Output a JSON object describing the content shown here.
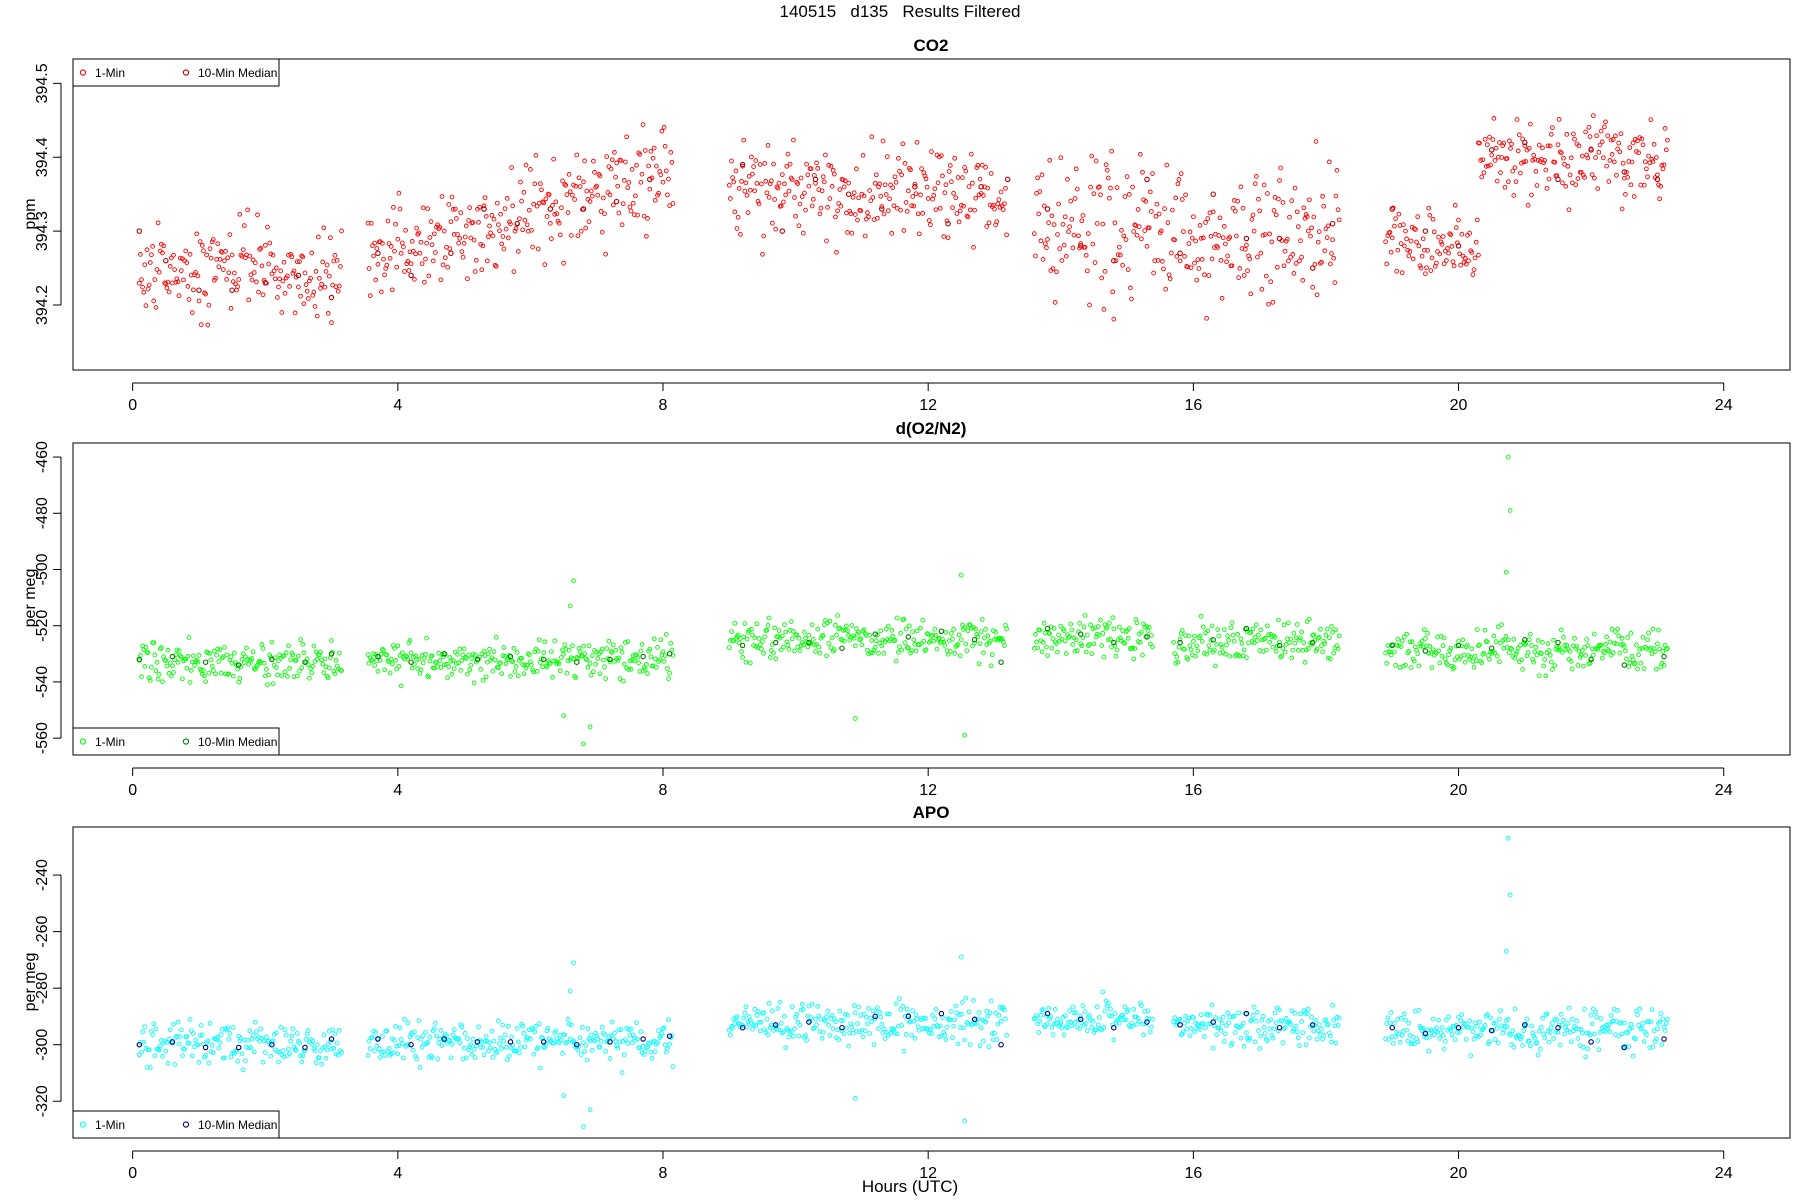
{
  "page_title": "140515   d135   Results Filtered",
  "xlabel": "Hours (UTC)",
  "x_ticks": [
    0,
    4,
    8,
    12,
    16,
    20,
    24
  ],
  "chart_data": [
    {
      "type": "scatter",
      "title": "CO2",
      "ylabel": "ppm",
      "xlim": [
        -0.9,
        25.0
      ],
      "ylim": [
        394.112,
        394.533
      ],
      "y_ticks": [
        394.2,
        394.3,
        394.4,
        394.5
      ],
      "y_tick_labels": [
        "394.2",
        "394.3",
        "394.4",
        "394.5"
      ],
      "legend": {
        "position": "top-left",
        "entries": [
          "1-Min",
          "10-Min Median"
        ]
      },
      "series": [
        {
          "name": "1-Min",
          "color": "#ff0000",
          "segments": [
            {
              "x": [
                0.1,
                3.15
              ],
              "center": 394.245,
              "noise": 0.04
            },
            {
              "x": [
                3.55,
                8.15
              ],
              "center": 394.26,
              "end_center": 394.38,
              "noise": 0.045
            },
            {
              "x": [
                9.0,
                13.2
              ],
              "center": 394.35,
              "noise": 0.04
            },
            {
              "x": [
                13.6,
                18.2
              ],
              "center": 394.3,
              "noise": 0.065
            },
            {
              "x": [
                18.9,
                20.3
              ],
              "center": 394.28,
              "noise": 0.03
            },
            {
              "x": [
                20.3,
                23.15
              ],
              "center": 394.4,
              "noise": 0.04
            }
          ]
        },
        {
          "name": "10-Min Median",
          "color": "#b00000",
          "points": [
            [
              0.1,
              394.3
            ],
            [
              0.5,
              394.26
            ],
            [
              1.0,
              394.22
            ],
            [
              1.5,
              394.22
            ],
            [
              2.0,
              394.23
            ],
            [
              2.5,
              394.24
            ],
            [
              3.0,
              394.21
            ],
            [
              3.7,
              394.27
            ],
            [
              4.2,
              394.24
            ],
            [
              4.8,
              394.27
            ],
            [
              5.3,
              394.33
            ],
            [
              5.8,
              394.31
            ],
            [
              6.3,
              394.33
            ],
            [
              6.8,
              394.33
            ],
            [
              7.3,
              394.34
            ],
            [
              7.8,
              394.37
            ],
            [
              9.2,
              394.39
            ],
            [
              9.8,
              394.3
            ],
            [
              10.3,
              394.37
            ],
            [
              10.8,
              394.35
            ],
            [
              11.3,
              394.33
            ],
            [
              11.8,
              394.36
            ],
            [
              12.3,
              394.31
            ],
            [
              12.8,
              394.36
            ],
            [
              13.2,
              394.37
            ],
            [
              13.8,
              394.33
            ],
            [
              14.3,
              394.28
            ],
            [
              14.8,
              394.26
            ],
            [
              15.3,
              394.37
            ],
            [
              15.8,
              394.27
            ],
            [
              16.3,
              394.35
            ],
            [
              16.8,
              394.29
            ],
            [
              17.3,
              394.29
            ],
            [
              17.8,
              394.25
            ],
            [
              18.1,
              394.31
            ],
            [
              19.0,
              394.33
            ],
            [
              19.5,
              394.3
            ],
            [
              20.0,
              394.28
            ],
            [
              20.5,
              394.41
            ],
            [
              21.0,
              394.42
            ],
            [
              21.5,
              394.37
            ],
            [
              22.0,
              394.41
            ],
            [
              22.5,
              394.38
            ],
            [
              23.0,
              394.37
            ]
          ]
        }
      ]
    },
    {
      "type": "scatter",
      "title": "d(O2/N2)",
      "ylabel": "per meg",
      "xlim": [
        -0.9,
        25.0
      ],
      "ylim": [
        -566.0,
        -455.0
      ],
      "y_ticks": [
        -560,
        -540,
        -520,
        -500,
        -480,
        -460
      ],
      "y_tick_labels": [
        "-560",
        "-540",
        "-520",
        "-500",
        "-480",
        "-460"
      ],
      "legend": {
        "position": "bottom-left",
        "entries": [
          "1-Min",
          "10-Min Median"
        ]
      },
      "series": [
        {
          "name": "1-Min",
          "color": "#00ff00",
          "segments": [
            {
              "x": [
                0.1,
                3.15
              ],
              "center": -533.0,
              "noise": 5.0
            },
            {
              "x": [
                3.55,
                8.15
              ],
              "center": -532.0,
              "noise": 5.0
            },
            {
              "x": [
                9.0,
                13.2
              ],
              "center": -525.0,
              "noise": 5.0
            },
            {
              "x": [
                13.6,
                15.4
              ],
              "center": -524.0,
              "noise": 4.5
            },
            {
              "x": [
                15.7,
                18.2
              ],
              "center": -526.0,
              "noise": 5.0
            },
            {
              "x": [
                18.9,
                23.15
              ],
              "center": -529.0,
              "noise": 5.0
            }
          ],
          "outliers": [
            [
              20.75,
              -460
            ],
            [
              20.78,
              -479
            ],
            [
              20.72,
              -501
            ],
            [
              6.65,
              -504
            ],
            [
              6.6,
              -513
            ],
            [
              6.9,
              -556
            ],
            [
              6.5,
              -552
            ],
            [
              6.8,
              -562
            ],
            [
              12.55,
              -559
            ],
            [
              12.5,
              -502
            ],
            [
              10.9,
              -553
            ]
          ]
        },
        {
          "name": "10-Min Median",
          "color": "#007a00",
          "points": [
            [
              0.1,
              -532
            ],
            [
              0.6,
              -531
            ],
            [
              1.1,
              -533
            ],
            [
              1.6,
              -534
            ],
            [
              2.1,
              -532
            ],
            [
              2.6,
              -533
            ],
            [
              3.0,
              -530
            ],
            [
              3.7,
              -531
            ],
            [
              4.2,
              -533
            ],
            [
              4.7,
              -530
            ],
            [
              5.2,
              -532
            ],
            [
              5.7,
              -531
            ],
            [
              6.2,
              -532
            ],
            [
              6.7,
              -533
            ],
            [
              7.2,
              -532
            ],
            [
              7.7,
              -531
            ],
            [
              8.1,
              -530
            ],
            [
              9.2,
              -527
            ],
            [
              9.7,
              -526
            ],
            [
              10.2,
              -526
            ],
            [
              10.7,
              -528
            ],
            [
              11.2,
              -523
            ],
            [
              11.7,
              -524
            ],
            [
              12.2,
              -522
            ],
            [
              12.7,
              -525
            ],
            [
              13.1,
              -533
            ],
            [
              13.8,
              -521
            ],
            [
              14.3,
              -523
            ],
            [
              14.8,
              -526
            ],
            [
              15.3,
              -524
            ],
            [
              15.8,
              -526
            ],
            [
              16.3,
              -525
            ],
            [
              16.8,
              -521
            ],
            [
              17.3,
              -527
            ],
            [
              17.8,
              -526
            ],
            [
              19.0,
              -527
            ],
            [
              19.5,
              -529
            ],
            [
              20.0,
              -527
            ],
            [
              20.5,
              -528
            ],
            [
              21.0,
              -525
            ],
            [
              21.5,
              -526
            ],
            [
              22.0,
              -532
            ],
            [
              22.5,
              -534
            ],
            [
              23.1,
              -531
            ]
          ]
        }
      ]
    },
    {
      "type": "scatter",
      "title": "APO",
      "ylabel": "per meg",
      "xlim": [
        -0.9,
        25.0
      ],
      "ylim": [
        -333.0,
        -223.0
      ],
      "y_ticks": [
        -320,
        -300,
        -280,
        -260,
        -240
      ],
      "y_tick_labels": [
        "-320",
        "-300",
        "-280",
        "-260",
        "-240"
      ],
      "legend": {
        "position": "bottom-left",
        "entries": [
          "1-Min",
          "10-Min Median"
        ]
      },
      "series": [
        {
          "name": "1-Min",
          "color": "#00ffff",
          "segments": [
            {
              "x": [
                0.1,
                3.15
              ],
              "center": -300.0,
              "noise": 5.0
            },
            {
              "x": [
                3.55,
                8.15
              ],
              "center": -299.0,
              "noise": 5.0
            },
            {
              "x": [
                9.0,
                13.2
              ],
              "center": -293.0,
              "noise": 5.0
            },
            {
              "x": [
                13.6,
                15.4
              ],
              "center": -291.0,
              "noise": 4.5
            },
            {
              "x": [
                15.7,
                18.2
              ],
              "center": -293.0,
              "noise": 5.0
            },
            {
              "x": [
                18.9,
                23.15
              ],
              "center": -295.0,
              "noise": 5.0
            }
          ],
          "outliers": [
            [
              20.75,
              -227
            ],
            [
              20.78,
              -247
            ],
            [
              20.72,
              -267
            ],
            [
              6.65,
              -271
            ],
            [
              6.6,
              -281
            ],
            [
              6.9,
              -323
            ],
            [
              6.5,
              -318
            ],
            [
              6.8,
              -329
            ],
            [
              12.55,
              -327
            ],
            [
              12.5,
              -269
            ],
            [
              10.9,
              -319
            ]
          ]
        },
        {
          "name": "10-Min Median",
          "color": "#000080",
          "points": [
            [
              0.1,
              -300
            ],
            [
              0.6,
              -299
            ],
            [
              1.1,
              -301
            ],
            [
              1.6,
              -301
            ],
            [
              2.1,
              -300
            ],
            [
              2.6,
              -301
            ],
            [
              3.0,
              -298
            ],
            [
              3.7,
              -298
            ],
            [
              4.2,
              -300
            ],
            [
              4.7,
              -298
            ],
            [
              5.2,
              -299
            ],
            [
              5.7,
              -299
            ],
            [
              6.2,
              -299
            ],
            [
              6.7,
              -300
            ],
            [
              7.2,
              -299
            ],
            [
              7.7,
              -298
            ],
            [
              8.1,
              -297
            ],
            [
              9.2,
              -294
            ],
            [
              9.7,
              -293
            ],
            [
              10.2,
              -292
            ],
            [
              10.7,
              -294
            ],
            [
              11.2,
              -290
            ],
            [
              11.7,
              -290
            ],
            [
              12.2,
              -289
            ],
            [
              12.7,
              -291
            ],
            [
              13.1,
              -300
            ],
            [
              13.8,
              -289
            ],
            [
              14.3,
              -291
            ],
            [
              14.8,
              -294
            ],
            [
              15.3,
              -292
            ],
            [
              15.8,
              -293
            ],
            [
              16.3,
              -292
            ],
            [
              16.8,
              -289
            ],
            [
              17.3,
              -294
            ],
            [
              17.8,
              -293
            ],
            [
              19.0,
              -294
            ],
            [
              19.5,
              -296
            ],
            [
              20.0,
              -294
            ],
            [
              20.5,
              -295
            ],
            [
              21.0,
              -293
            ],
            [
              21.5,
              -294
            ],
            [
              22.0,
              -299
            ],
            [
              22.5,
              -301
            ],
            [
              23.1,
              -298
            ]
          ]
        }
      ]
    }
  ]
}
